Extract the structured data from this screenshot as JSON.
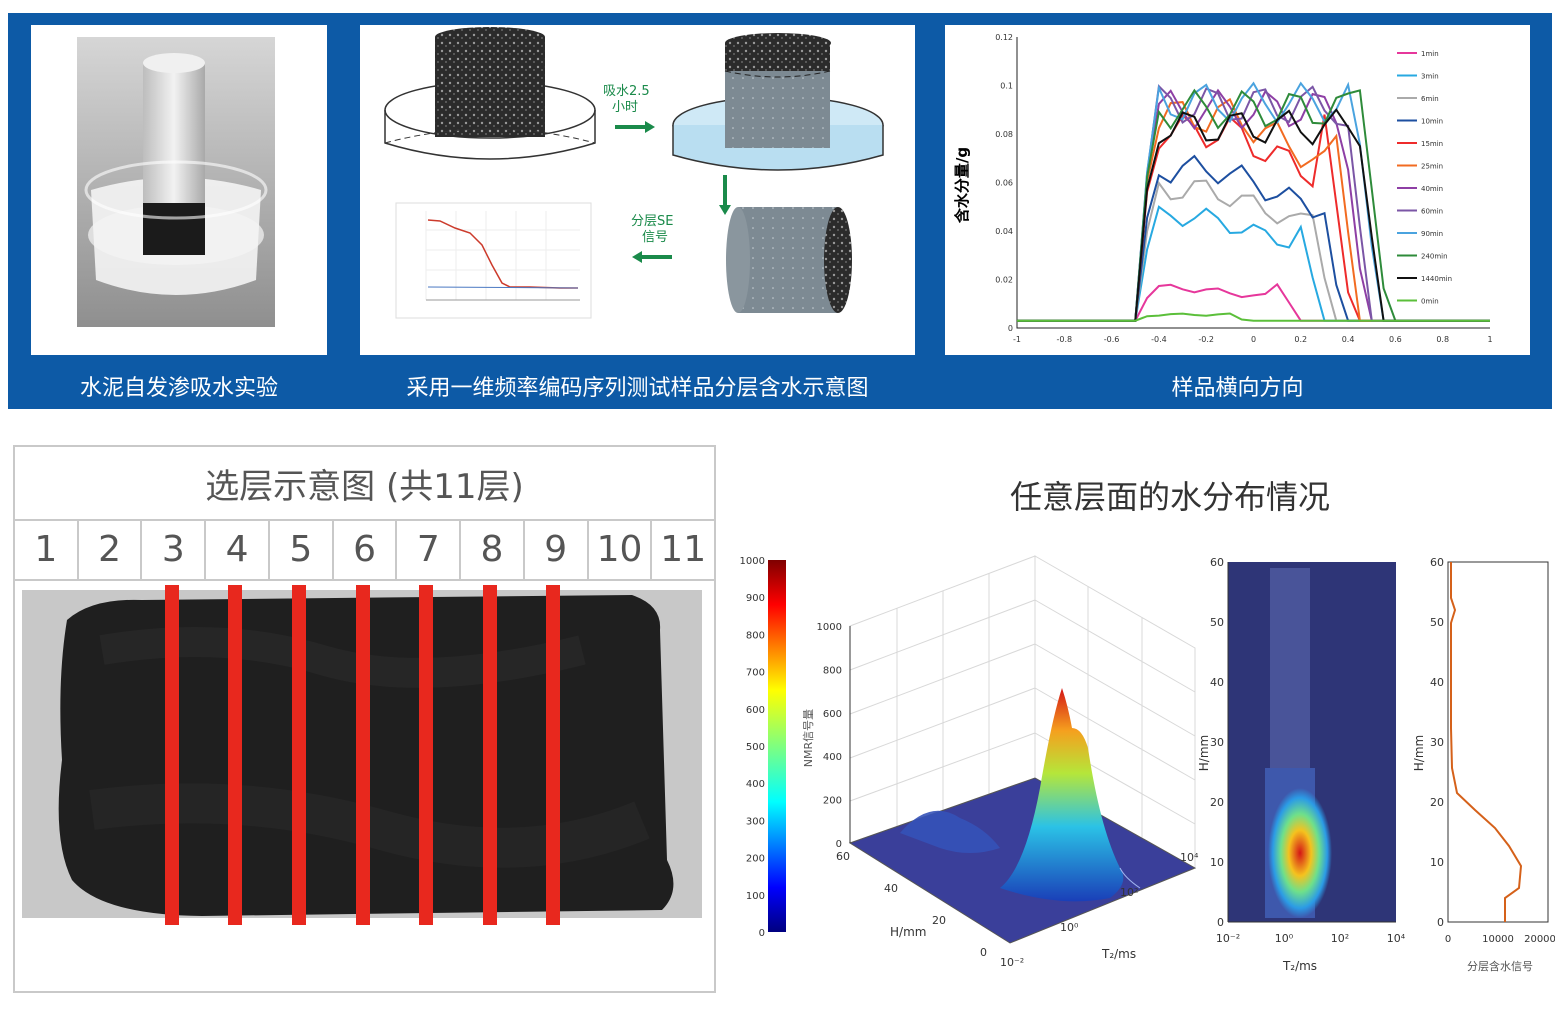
{
  "captions": {
    "photo": "水泥自发渗吸水实验",
    "schematic": "采用一维频率编码序列测试样品分层含水示意图",
    "profile": "样品横向方向"
  },
  "schematic": {
    "step1": "吸水2.5",
    "step1b": "小时",
    "step2": "分层SE",
    "step2b": "信号"
  },
  "profile_chart": {
    "ylabel": "含水分量/g",
    "y_ticks": [
      "0",
      "0.02",
      "0.04",
      "0.06",
      "0.08",
      "0.1",
      "0.12"
    ],
    "x_ticks": [
      "-1",
      "-0.8",
      "-0.6",
      "-0.4",
      "-0.2",
      "0",
      "0.2",
      "0.4",
      "0.6",
      "0.8",
      "1"
    ],
    "legend": [
      "1min",
      "3min",
      "6min",
      "10min",
      "15min",
      "25min",
      "40min",
      "60min",
      "90min",
      "240min",
      "1440min",
      "0min"
    ],
    "colors": [
      "#e6379b",
      "#27a9e1",
      "#aaaaaa",
      "#1d4fa0",
      "#ee2b2b",
      "#f26b21",
      "#8e3fa5",
      "#7b56a6",
      "#4aa3df",
      "#2e8b3a",
      "#111111",
      "#5bbf3a"
    ]
  },
  "layer_select": {
    "title": "选层示意图 (共11层)",
    "numbers": [
      "1",
      "2",
      "3",
      "4",
      "5",
      "6",
      "7",
      "8",
      "9",
      "10",
      "11"
    ]
  },
  "distribution": {
    "title": "任意层面的水分布情况",
    "colorbar_ticks": [
      "1000",
      "900",
      "800",
      "700",
      "600",
      "500",
      "400",
      "300",
      "200",
      "100",
      "0"
    ],
    "surface": {
      "zlabel": "NMR信号量",
      "z_ticks": [
        "1000",
        "800",
        "600",
        "400",
        "200",
        "0"
      ],
      "h_label": "H/mm",
      "h_ticks": [
        "60",
        "40",
        "20",
        "0"
      ],
      "t2_label": "T₂/ms",
      "t2_ticks": [
        "10⁻²",
        "10⁰",
        "10²",
        "10⁴"
      ]
    },
    "heatmap": {
      "ylabel": "H/mm",
      "y_ticks": [
        "60",
        "50",
        "40",
        "30",
        "20",
        "10",
        "0"
      ],
      "xlabel": "T₂/ms",
      "x_ticks": [
        "10⁻²",
        "10⁰",
        "10²",
        "10⁴"
      ]
    },
    "profile": {
      "ylabel": "H/mm",
      "y_ticks": [
        "60",
        "50",
        "40",
        "30",
        "20",
        "10",
        "0"
      ],
      "x_ticks": [
        "0",
        "10000",
        "20000"
      ],
      "xlabel": "分层含水信号"
    }
  }
}
